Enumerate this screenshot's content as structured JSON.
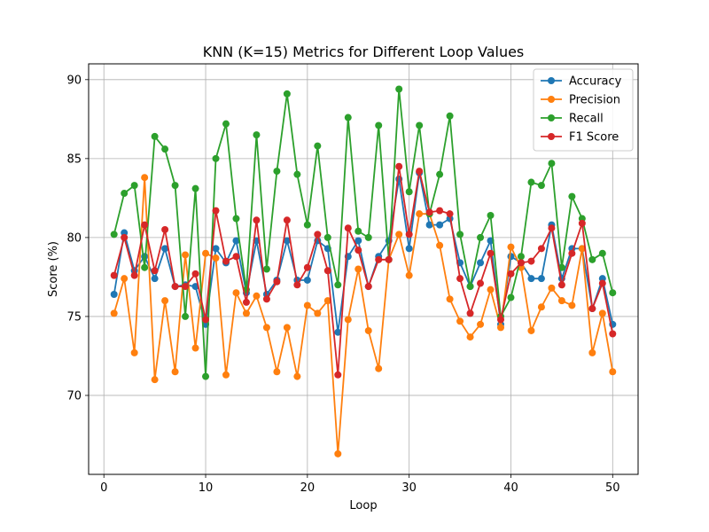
{
  "chart_data": {
    "type": "line",
    "title": "KNN (K=15) Metrics for Different Loop Values",
    "xlabel": "Loop",
    "ylabel": "Score (%)",
    "xlim": [
      -1.5,
      52.5
    ],
    "ylim": [
      65,
      91
    ],
    "xticks": [
      0,
      10,
      20,
      30,
      40,
      50
    ],
    "yticks": [
      70,
      75,
      80,
      85,
      90
    ],
    "grid": true,
    "legend_position": "top-right",
    "x": [
      1,
      2,
      3,
      4,
      5,
      6,
      7,
      8,
      9,
      10,
      11,
      12,
      13,
      14,
      15,
      16,
      17,
      18,
      19,
      20,
      21,
      22,
      23,
      24,
      25,
      26,
      27,
      28,
      29,
      30,
      31,
      32,
      33,
      34,
      35,
      36,
      37,
      38,
      39,
      40,
      41,
      42,
      43,
      44,
      45,
      46,
      47,
      48,
      49,
      50
    ],
    "series": [
      {
        "name": "Accuracy",
        "color": "#1f77b4",
        "values": [
          76.4,
          80.3,
          77.9,
          78.8,
          77.4,
          79.3,
          76.9,
          77.0,
          76.9,
          74.5,
          79.3,
          78.4,
          79.8,
          76.5,
          79.8,
          76.4,
          77.3,
          79.8,
          77.3,
          77.3,
          79.8,
          79.3,
          74.0,
          78.8,
          79.8,
          76.9,
          78.8,
          79.8,
          83.7,
          79.3,
          84.1,
          80.8,
          80.8,
          81.2,
          78.4,
          76.9,
          78.4,
          79.8,
          74.5,
          78.8,
          78.4,
          77.4,
          77.4,
          80.8,
          77.4,
          79.3,
          79.3,
          75.5,
          77.4,
          74.5
        ]
      },
      {
        "name": "Precision",
        "color": "#ff7f0e",
        "values": [
          75.2,
          77.4,
          72.7,
          83.8,
          71.0,
          76.0,
          71.5,
          78.9,
          73.0,
          79.0,
          78.7,
          71.3,
          76.5,
          75.2,
          76.3,
          74.3,
          71.5,
          74.3,
          71.2,
          75.7,
          75.2,
          76.0,
          66.3,
          74.8,
          78.0,
          74.1,
          71.7,
          78.6,
          80.2,
          77.6,
          81.5,
          81.5,
          79.5,
          76.1,
          74.7,
          73.7,
          74.5,
          76.7,
          74.3,
          79.4,
          78.1,
          74.1,
          75.6,
          76.8,
          76.0,
          75.7,
          79.3,
          72.7,
          75.2,
          71.5
        ]
      },
      {
        "name": "Recall",
        "color": "#2ca02c",
        "values": [
          80.2,
          82.8,
          83.3,
          78.1,
          86.4,
          85.6,
          83.3,
          75.0,
          83.1,
          71.2,
          85.0,
          87.2,
          81.2,
          76.7,
          86.5,
          78.0,
          84.2,
          89.1,
          84.0,
          80.8,
          85.8,
          80.0,
          77.0,
          87.6,
          80.4,
          80.0,
          87.1,
          78.6,
          89.4,
          82.9,
          87.1,
          81.5,
          84.0,
          87.7,
          80.2,
          76.9,
          80.0,
          81.4,
          75.0,
          76.2,
          78.8,
          83.5,
          83.3,
          84.7,
          78.1,
          82.6,
          81.2,
          78.6,
          79.0,
          76.5
        ]
      },
      {
        "name": "F1 Score",
        "color": "#d62728",
        "values": [
          77.6,
          80.0,
          77.6,
          80.8,
          77.9,
          80.5,
          76.9,
          76.9,
          77.7,
          74.8,
          81.7,
          78.5,
          78.8,
          75.9,
          81.1,
          76.1,
          77.2,
          81.1,
          77.0,
          78.1,
          80.2,
          77.9,
          71.3,
          80.6,
          79.2,
          76.9,
          78.6,
          78.6,
          84.5,
          80.2,
          84.2,
          81.6,
          81.7,
          81.5,
          77.4,
          75.2,
          77.1,
          79.0,
          74.8,
          77.7,
          78.4,
          78.5,
          79.3,
          80.6,
          77.0,
          79.0,
          80.9,
          75.5,
          77.1,
          73.9
        ]
      }
    ]
  }
}
